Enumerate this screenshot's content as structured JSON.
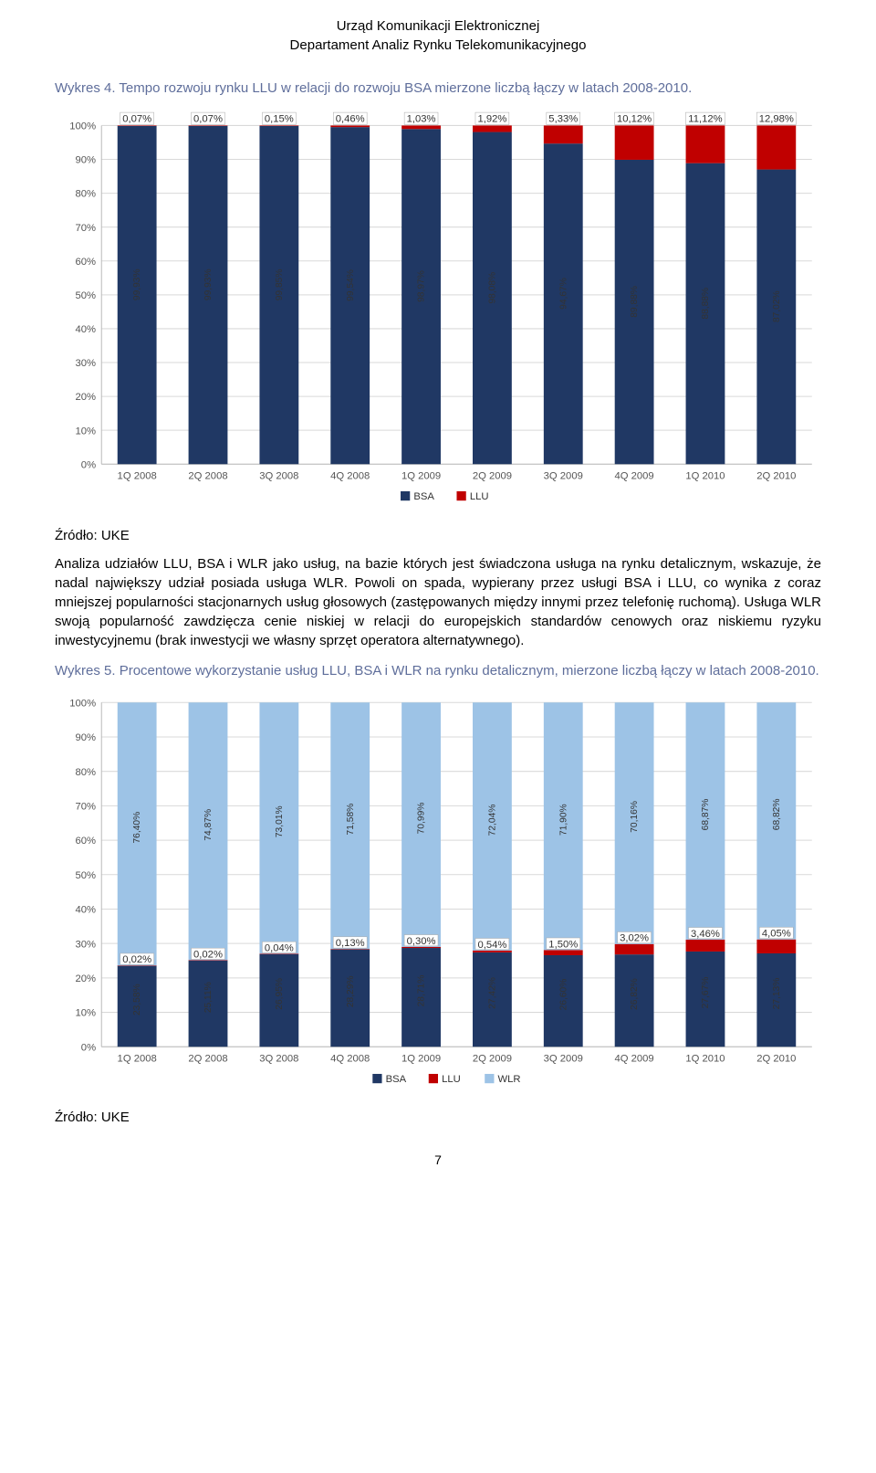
{
  "header": {
    "line1": "Urząd Komunikacji Elektronicznej",
    "line2": "Departament Analiz Rynku Telekomunikacyjnego"
  },
  "caption1": "Wykres 4. Tempo rozwoju rynku LLU w relacji do rozwoju BSA mierzone liczbą łączy w latach 2008-2010.",
  "source": "Źródło: UKE",
  "body": "Analiza udziałów LLU, BSA i WLR jako usług, na bazie których jest świadczona usługa na rynku detalicznym, wskazuje, że nadal największy udział posiada usługa WLR. Powoli on spada, wypierany przez usługi BSA i LLU, co wynika z coraz mniejszej popularności stacjonarnych usług głosowych (zastępowanych między innymi przez telefonię ruchomą). Usługa WLR swoją popularność zawdzięcza cenie niskiej w relacji do europejskich standardów cenowych oraz niskiemu ryzyku inwestycyjnemu (brak inwestycji we własny sprzęt operatora alternatywnego).",
  "caption2": "Wykres 5. Procentowe wykorzystanie usług LLU, BSA i WLR na rynku detalicznym, mierzone liczbą łączy w latach 2008-2010.",
  "page_number": "7",
  "chart1": {
    "type": "stacked-bar",
    "categories": [
      "1Q 2008",
      "2Q 2008",
      "3Q 2008",
      "4Q 2008",
      "1Q 2009",
      "2Q 2009",
      "3Q 2009",
      "4Q 2009",
      "1Q 2010",
      "2Q 2010"
    ],
    "llu": [
      0.07,
      0.07,
      0.15,
      0.46,
      1.03,
      1.92,
      5.33,
      10.12,
      11.12,
      12.98
    ],
    "bsa": [
      99.93,
      99.93,
      99.85,
      99.54,
      98.97,
      98.08,
      94.67,
      89.88,
      88.88,
      87.02
    ],
    "colors": {
      "bsa": "#203864",
      "llu": "#c00000"
    },
    "y_ticks": [
      0,
      10,
      20,
      30,
      40,
      50,
      60,
      70,
      80,
      90,
      100
    ],
    "ylim": [
      0,
      100
    ],
    "legend": [
      "BSA",
      "LLU"
    ],
    "background": "#ffffff",
    "grid_color": "#d9d9d9",
    "bar_width_ratio": 0.55
  },
  "chart2": {
    "type": "stacked-bar",
    "categories": [
      "1Q 2008",
      "2Q 2008",
      "3Q 2008",
      "4Q 2008",
      "1Q 2009",
      "2Q 2009",
      "3Q 2009",
      "4Q 2009",
      "1Q 2010",
      "2Q 2010"
    ],
    "bsa": [
      23.58,
      25.11,
      26.95,
      28.29,
      28.71,
      27.42,
      26.6,
      26.82,
      27.67,
      27.13
    ],
    "llu": [
      0.02,
      0.02,
      0.04,
      0.13,
      0.3,
      0.54,
      1.5,
      3.02,
      3.46,
      4.05
    ],
    "wlr": [
      76.4,
      74.87,
      73.01,
      71.58,
      70.99,
      72.04,
      71.9,
      70.16,
      68.87,
      68.82
    ],
    "colors": {
      "bsa": "#203864",
      "llu": "#c00000",
      "wlr": "#9dc3e6"
    },
    "y_ticks": [
      0,
      10,
      20,
      30,
      40,
      50,
      60,
      70,
      80,
      90,
      100
    ],
    "ylim": [
      0,
      100
    ],
    "legend": [
      "BSA",
      "LLU",
      "WLR"
    ],
    "background": "#ffffff",
    "grid_color": "#d9d9d9",
    "bar_width_ratio": 0.55
  }
}
